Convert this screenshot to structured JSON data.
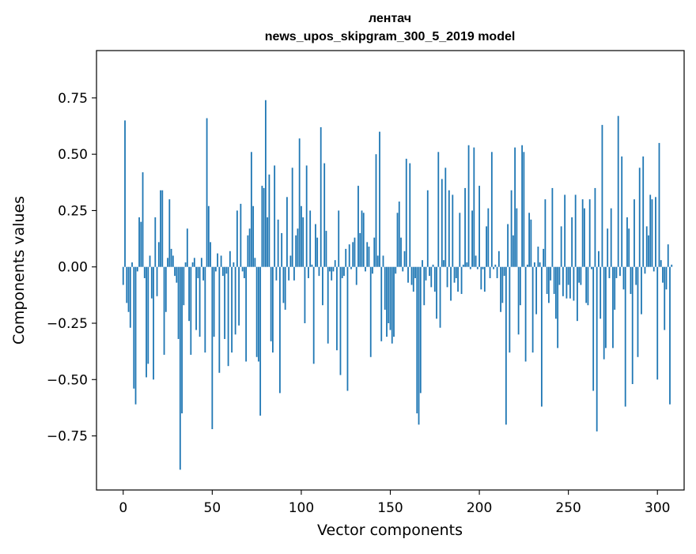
{
  "chart_data": {
    "type": "bar",
    "title": "лентач",
    "subtitle": "news_upos_skipgram_300_5_2019 model",
    "xlabel": "Vector components",
    "ylabel": "Components values",
    "xlim": [
      -15,
      315
    ],
    "ylim": [
      -0.99,
      0.96
    ],
    "xticks": [
      0,
      50,
      100,
      150,
      200,
      250,
      300
    ],
    "xtick_labels": [
      "0",
      "50",
      "100",
      "150",
      "200",
      "250",
      "300"
    ],
    "yticks": [
      -0.75,
      -0.5,
      -0.25,
      0.0,
      0.25,
      0.5,
      0.75
    ],
    "ytick_labels": [
      "−0.75",
      "−0.50",
      "−0.25",
      "0.00",
      "0.25",
      "0.50",
      "0.75"
    ],
    "bar_color": "#1f77b4",
    "bar_width": 0.8,
    "grid": false,
    "legend": false,
    "values": [
      -0.08,
      0.65,
      -0.16,
      -0.2,
      -0.27,
      0.02,
      -0.54,
      -0.61,
      -0.02,
      0.22,
      0.2,
      0.42,
      -0.05,
      -0.49,
      -0.43,
      0.05,
      -0.14,
      -0.5,
      0.22,
      -0.13,
      0.11,
      0.34,
      0.34,
      -0.39,
      -0.2,
      0.04,
      0.3,
      0.08,
      0.05,
      -0.04,
      -0.07,
      -0.32,
      -0.9,
      -0.65,
      -0.17,
      0.02,
      0.17,
      -0.24,
      -0.39,
      0.02,
      0.04,
      -0.28,
      -0.05,
      -0.31,
      0.04,
      -0.06,
      -0.38,
      0.66,
      0.27,
      0.11,
      -0.72,
      -0.31,
      -0.02,
      0.06,
      -0.47,
      0.05,
      -0.04,
      -0.32,
      -0.03,
      -0.44,
      0.07,
      -0.38,
      0.02,
      -0.3,
      0.25,
      -0.26,
      0.28,
      -0.02,
      -0.05,
      -0.42,
      0.14,
      0.17,
      0.51,
      0.27,
      0.04,
      -0.4,
      -0.42,
      -0.66,
      0.36,
      0.35,
      0.74,
      0.22,
      0.41,
      -0.33,
      -0.38,
      0.45,
      -0.06,
      0.21,
      -0.56,
      0.15,
      -0.16,
      -0.19,
      0.31,
      -0.06,
      0.05,
      0.44,
      -0.06,
      0.14,
      0.17,
      0.57,
      0.27,
      0.22,
      -0.25,
      0.45,
      -0.05,
      0.25,
      0.01,
      -0.43,
      0.19,
      0.13,
      -0.04,
      0.62,
      -0.17,
      0.46,
      0.16,
      -0.34,
      -0.02,
      -0.06,
      -0.02,
      0.03,
      -0.37,
      0.25,
      -0.48,
      -0.05,
      -0.04,
      0.08,
      -0.55,
      0.1,
      -0.01,
      0.11,
      0.13,
      -0.08,
      0.36,
      0.15,
      0.25,
      0.24,
      -0.02,
      0.11,
      0.09,
      -0.4,
      -0.03,
      0.13,
      0.5,
      0.05,
      0.6,
      -0.33,
      0.05,
      -0.19,
      -0.31,
      -0.25,
      -0.28,
      -0.34,
      -0.31,
      -0.03,
      0.24,
      0.29,
      0.13,
      -0.02,
      0.07,
      0.48,
      -0.07,
      0.46,
      -0.08,
      -0.11,
      -0.05,
      -0.65,
      -0.7,
      -0.56,
      0.03,
      -0.17,
      -0.06,
      0.34,
      -0.04,
      -0.09,
      0.01,
      -0.11,
      -0.23,
      0.51,
      -0.27,
      0.39,
      0.03,
      0.44,
      -0.09,
      0.34,
      -0.15,
      0.32,
      -0.07,
      -0.05,
      -0.11,
      0.24,
      -0.12,
      0.01,
      0.35,
      0.02,
      0.54,
      -0.01,
      0.25,
      0.53,
      0.05,
      -0.01,
      0.36,
      -0.1,
      -0.01,
      -0.11,
      0.18,
      0.26,
      -0.05,
      0.51,
      -0.01,
      0.01,
      -0.05,
      0.07,
      -0.2,
      -0.16,
      -0.04,
      -0.7,
      0.19,
      -0.38,
      0.34,
      0.14,
      0.53,
      0.26,
      -0.3,
      -0.17,
      0.54,
      0.51,
      -0.42,
      0.01,
      0.24,
      0.21,
      -0.38,
      0.02,
      -0.21,
      0.09,
      0.02,
      -0.62,
      0.08,
      0.3,
      -0.12,
      -0.16,
      -0.06,
      0.35,
      -0.12,
      -0.23,
      -0.36,
      -0.08,
      0.18,
      -0.13,
      0.32,
      -0.14,
      -0.08,
      -0.14,
      0.22,
      -0.15,
      0.32,
      -0.24,
      -0.07,
      -0.08,
      0.3,
      0.26,
      -0.16,
      -0.17,
      0.3,
      -0.01,
      -0.55,
      0.35,
      -0.73,
      0.07,
      -0.23,
      0.63,
      -0.41,
      -0.36,
      0.17,
      -0.05,
      0.26,
      -0.36,
      -0.19,
      -0.05,
      0.67,
      -0.04,
      0.49,
      -0.1,
      -0.62,
      0.22,
      0.17,
      -0.12,
      -0.52,
      0.3,
      -0.08,
      -0.4,
      0.44,
      -0.21,
      0.49,
      -0.03,
      0.18,
      0.14,
      0.32,
      0.3,
      -0.02,
      0.31,
      -0.5,
      0.55,
      0.03,
      -0.07,
      -0.28,
      -0.1,
      0.1,
      -0.61,
      0.01
    ]
  }
}
